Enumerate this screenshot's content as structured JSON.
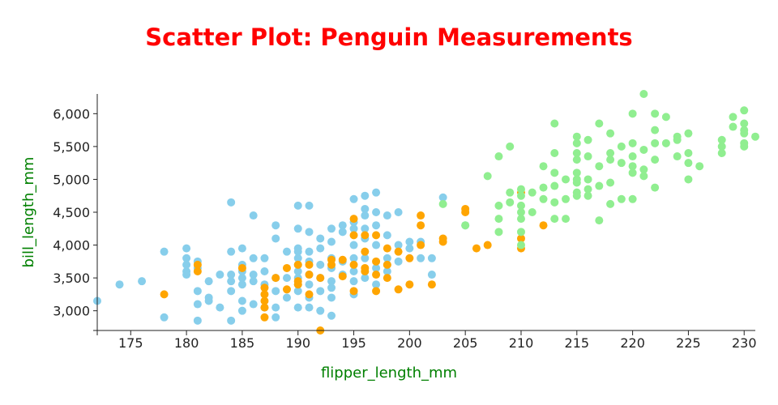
{
  "chart_data": {
    "type": "scatter",
    "title": "Scatter Plot: Penguin Measurements",
    "xlabel": "flipper_length_mm",
    "ylabel": "bill_length_mm",
    "xlim": [
      172,
      231
    ],
    "ylim": [
      2700,
      6300
    ],
    "x_ticks": [
      175,
      180,
      185,
      190,
      195,
      200,
      205,
      210,
      215,
      220,
      225,
      230
    ],
    "y_ticks": [
      3000,
      3500,
      4000,
      4500,
      5000,
      5500,
      6000
    ],
    "x_tick_labels": [
      "175",
      "180",
      "185",
      "190",
      "195",
      "200",
      "205",
      "210",
      "215",
      "220",
      "225",
      "230"
    ],
    "y_tick_labels": [
      "3,000",
      "3,500",
      "4,000",
      "4,500",
      "5,000",
      "5,500",
      "6,000"
    ],
    "grid": false,
    "legend": "none",
    "colors": [
      "#87ceeb",
      "#ffa500",
      "#90ee90"
    ],
    "series": [
      {
        "points": [
          [
            172,
            3150
          ],
          [
            174,
            3400
          ],
          [
            176,
            3450
          ],
          [
            178,
            3900
          ],
          [
            178,
            2900
          ],
          [
            180,
            3950
          ],
          [
            180,
            3800
          ],
          [
            180,
            3600
          ],
          [
            180,
            3550
          ],
          [
            180,
            3700
          ],
          [
            181,
            3300
          ],
          [
            181,
            3100
          ],
          [
            181,
            2850
          ],
          [
            181,
            3750
          ],
          [
            181,
            3650
          ],
          [
            182,
            3450
          ],
          [
            182,
            3200
          ],
          [
            182,
            3150
          ],
          [
            183,
            3550
          ],
          [
            183,
            3050
          ],
          [
            184,
            4650
          ],
          [
            184,
            3900
          ],
          [
            184,
            3550
          ],
          [
            184,
            3450
          ],
          [
            184,
            3300
          ],
          [
            184,
            2850
          ],
          [
            185,
            3950
          ],
          [
            185,
            3700
          ],
          [
            185,
            3600
          ],
          [
            185,
            3500
          ],
          [
            185,
            3400
          ],
          [
            185,
            3150
          ],
          [
            185,
            3000
          ],
          [
            186,
            4450
          ],
          [
            186,
            3800
          ],
          [
            186,
            3550
          ],
          [
            186,
            3450
          ],
          [
            186,
            3100
          ],
          [
            187,
            3800
          ],
          [
            187,
            3600
          ],
          [
            187,
            3400
          ],
          [
            187,
            3050
          ],
          [
            188,
            4300
          ],
          [
            188,
            4100
          ],
          [
            188,
            3500
          ],
          [
            188,
            3300
          ],
          [
            188,
            3050
          ],
          [
            188,
            2900
          ],
          [
            189,
            3900
          ],
          [
            189,
            3500
          ],
          [
            189,
            3200
          ],
          [
            190,
            4600
          ],
          [
            190,
            4250
          ],
          [
            190,
            3950
          ],
          [
            190,
            3900
          ],
          [
            190,
            3800
          ],
          [
            190,
            3700
          ],
          [
            190,
            3600
          ],
          [
            190,
            3500
          ],
          [
            190,
            3400
          ],
          [
            190,
            3300
          ],
          [
            190,
            3050
          ],
          [
            191,
            4600
          ],
          [
            191,
            4200
          ],
          [
            191,
            3900
          ],
          [
            191,
            3750
          ],
          [
            191,
            3550
          ],
          [
            191,
            3400
          ],
          [
            191,
            3200
          ],
          [
            191,
            3050
          ],
          [
            192,
            4100
          ],
          [
            192,
            3950
          ],
          [
            192,
            3700
          ],
          [
            192,
            3500
          ],
          [
            192,
            3300
          ],
          [
            192,
            3000
          ],
          [
            193,
            4250
          ],
          [
            193,
            4050
          ],
          [
            193,
            3800
          ],
          [
            193,
            3650
          ],
          [
            193,
            3450
          ],
          [
            193,
            3350
          ],
          [
            193,
            3200
          ],
          [
            193,
            2925
          ],
          [
            194,
            4300
          ],
          [
            194,
            4200
          ],
          [
            194,
            3750
          ],
          [
            194,
            3550
          ],
          [
            195,
            4700
          ],
          [
            195,
            4350
          ],
          [
            195,
            4250
          ],
          [
            195,
            4000
          ],
          [
            195,
            3800
          ],
          [
            195,
            3600
          ],
          [
            195,
            3450
          ],
          [
            195,
            3250
          ],
          [
            196,
            4750
          ],
          [
            196,
            4550
          ],
          [
            196,
            4450
          ],
          [
            196,
            4250
          ],
          [
            196,
            4100
          ],
          [
            196,
            3800
          ],
          [
            196,
            3500
          ],
          [
            197,
            4800
          ],
          [
            197,
            4500
          ],
          [
            197,
            4300
          ],
          [
            197,
            4000
          ],
          [
            197,
            3650
          ],
          [
            197,
            3400
          ],
          [
            198,
            4450
          ],
          [
            198,
            4150
          ],
          [
            198,
            3800
          ],
          [
            198,
            3700
          ],
          [
            198,
            3600
          ],
          [
            199,
            4500
          ],
          [
            199,
            4000
          ],
          [
            199,
            3750
          ],
          [
            200,
            4050
          ],
          [
            200,
            3950
          ],
          [
            201,
            4050
          ],
          [
            201,
            3800
          ],
          [
            202,
            3550
          ],
          [
            202,
            3800
          ],
          [
            203,
            4725
          ],
          [
            205,
            4300
          ]
        ]
      },
      {
        "points": [
          [
            178,
            3250
          ],
          [
            181,
            3700
          ],
          [
            181,
            3600
          ],
          [
            185,
            3650
          ],
          [
            187,
            3350
          ],
          [
            187,
            3250
          ],
          [
            187,
            3150
          ],
          [
            187,
            3050
          ],
          [
            187,
            2900
          ],
          [
            188,
            3500
          ],
          [
            189,
            3650
          ],
          [
            189,
            3325
          ],
          [
            190,
            3700
          ],
          [
            190,
            3450
          ],
          [
            190,
            3400
          ],
          [
            191,
            3700
          ],
          [
            191,
            3550
          ],
          [
            191,
            3250
          ],
          [
            192,
            2700
          ],
          [
            192,
            3500
          ],
          [
            193,
            3775
          ],
          [
            193,
            3700
          ],
          [
            194,
            3775
          ],
          [
            194,
            3525
          ],
          [
            195,
            4400
          ],
          [
            195,
            4150
          ],
          [
            195,
            3700
          ],
          [
            195,
            3300
          ],
          [
            196,
            4150
          ],
          [
            196,
            3900
          ],
          [
            196,
            3650
          ],
          [
            196,
            3600
          ],
          [
            197,
            4150
          ],
          [
            197,
            3750
          ],
          [
            197,
            3550
          ],
          [
            197,
            3300
          ],
          [
            198,
            3950
          ],
          [
            198,
            3700
          ],
          [
            198,
            3500
          ],
          [
            199,
            3900
          ],
          [
            199,
            3325
          ],
          [
            200,
            3800
          ],
          [
            200,
            3400
          ],
          [
            201,
            4450
          ],
          [
            201,
            4300
          ],
          [
            201,
            4000
          ],
          [
            202,
            3400
          ],
          [
            203,
            4100
          ],
          [
            203,
            4050
          ],
          [
            205,
            4550
          ],
          [
            205,
            4500
          ],
          [
            206,
            3950
          ],
          [
            207,
            4000
          ],
          [
            210,
            4800
          ],
          [
            210,
            4100
          ],
          [
            210,
            3950
          ],
          [
            212,
            4300
          ]
        ]
      },
      {
        "points": [
          [
            203,
            4625
          ],
          [
            205,
            4300
          ],
          [
            207,
            5050
          ],
          [
            208,
            5350
          ],
          [
            208,
            4600
          ],
          [
            208,
            4400
          ],
          [
            208,
            4200
          ],
          [
            209,
            5500
          ],
          [
            209,
            4800
          ],
          [
            209,
            4650
          ],
          [
            210,
            4850
          ],
          [
            210,
            4750
          ],
          [
            210,
            4600
          ],
          [
            210,
            4500
          ],
          [
            210,
            4400
          ],
          [
            210,
            4200
          ],
          [
            210,
            4000
          ],
          [
            211,
            4500
          ],
          [
            211,
            4800
          ],
          [
            212,
            5200
          ],
          [
            212,
            4875
          ],
          [
            212,
            4700
          ],
          [
            213,
            5850
          ],
          [
            213,
            5400
          ],
          [
            213,
            5100
          ],
          [
            213,
            4900
          ],
          [
            213,
            4650
          ],
          [
            213,
            4400
          ],
          [
            214,
            5000
          ],
          [
            214,
            4700
          ],
          [
            214,
            4400
          ],
          [
            215,
            5650
          ],
          [
            215,
            5550
          ],
          [
            215,
            5400
          ],
          [
            215,
            5300
          ],
          [
            215,
            5100
          ],
          [
            215,
            5000
          ],
          [
            215,
            4950
          ],
          [
            215,
            4800
          ],
          [
            215,
            4750
          ],
          [
            216,
            5600
          ],
          [
            216,
            5350
          ],
          [
            216,
            5000
          ],
          [
            216,
            4850
          ],
          [
            216,
            4750
          ],
          [
            217,
            5850
          ],
          [
            217,
            5200
          ],
          [
            217,
            4900
          ],
          [
            217,
            4375
          ],
          [
            218,
            5700
          ],
          [
            218,
            5400
          ],
          [
            218,
            5300
          ],
          [
            218,
            4950
          ],
          [
            218,
            4625
          ],
          [
            219,
            5500
          ],
          [
            219,
            5250
          ],
          [
            219,
            4700
          ],
          [
            220,
            6000
          ],
          [
            220,
            5550
          ],
          [
            220,
            5350
          ],
          [
            220,
            5200
          ],
          [
            220,
            5100
          ],
          [
            220,
            4700
          ],
          [
            221,
            6300
          ],
          [
            221,
            5450
          ],
          [
            221,
            5150
          ],
          [
            221,
            5050
          ],
          [
            222,
            6000
          ],
          [
            222,
            5750
          ],
          [
            222,
            5550
          ],
          [
            222,
            5300
          ],
          [
            222,
            4875
          ],
          [
            223,
            5950
          ],
          [
            223,
            5550
          ],
          [
            224,
            5650
          ],
          [
            224,
            5600
          ],
          [
            224,
            5350
          ],
          [
            225,
            5700
          ],
          [
            225,
            5400
          ],
          [
            225,
            5250
          ],
          [
            225,
            5000
          ],
          [
            226,
            5200
          ],
          [
            228,
            5600
          ],
          [
            228,
            5500
          ],
          [
            228,
            5400
          ],
          [
            229,
            5950
          ],
          [
            229,
            5800
          ],
          [
            230,
            6050
          ],
          [
            230,
            5850
          ],
          [
            230,
            5750
          ],
          [
            230,
            5700
          ],
          [
            230,
            5550
          ],
          [
            230,
            5500
          ],
          [
            231,
            5650
          ]
        ]
      }
    ]
  }
}
